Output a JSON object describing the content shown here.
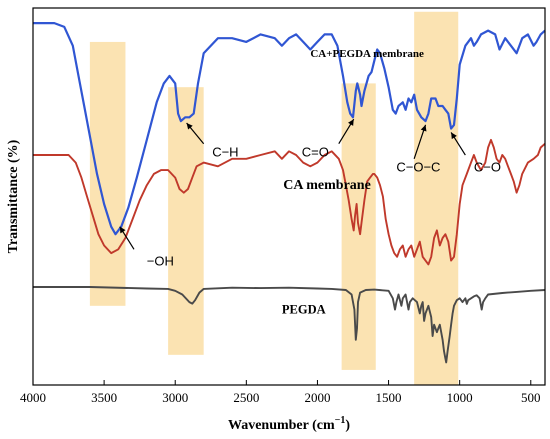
{
  "chart_data": {
    "type": "line",
    "xlabel": "Wavenumber (cm",
    "xlabel_sup": "−1",
    "xlabel_close": ")",
    "ylabel": "Transmittance (%)",
    "xlim": [
      4000,
      400
    ],
    "x_reversed": true,
    "y_ticks_shown": false,
    "grid": false,
    "legend": "none",
    "x_ticks": [
      4000,
      3500,
      3000,
      2500,
      2000,
      1500,
      1000,
      500
    ],
    "highlight_color": "#fbe3b2",
    "highlight_bands": [
      [
        3600,
        3350
      ],
      [
        3050,
        2800
      ],
      [
        1830,
        1590
      ],
      [
        1320,
        1010
      ]
    ],
    "series": [
      {
        "name": "CA+PEGDA membrane",
        "color": "#3056d3",
        "points": [
          [
            4000,
            96
          ],
          [
            3850,
            96
          ],
          [
            3780,
            95
          ],
          [
            3720,
            90
          ],
          [
            3680,
            82
          ],
          [
            3640,
            74
          ],
          [
            3600,
            66
          ],
          [
            3550,
            56
          ],
          [
            3500,
            48
          ],
          [
            3450,
            42
          ],
          [
            3420,
            40
          ],
          [
            3380,
            42
          ],
          [
            3330,
            47
          ],
          [
            3270,
            55
          ],
          [
            3200,
            65
          ],
          [
            3130,
            75
          ],
          [
            3080,
            80
          ],
          [
            3040,
            82
          ],
          [
            3000,
            80
          ],
          [
            2980,
            72
          ],
          [
            2960,
            70
          ],
          [
            2930,
            71
          ],
          [
            2900,
            71
          ],
          [
            2870,
            72
          ],
          [
            2840,
            80
          ],
          [
            2800,
            88
          ],
          [
            2700,
            92
          ],
          [
            2600,
            92
          ],
          [
            2500,
            91
          ],
          [
            2400,
            93
          ],
          [
            2300,
            92
          ],
          [
            2250,
            90
          ],
          [
            2200,
            92
          ],
          [
            2150,
            93
          ],
          [
            2100,
            91
          ],
          [
            2050,
            89
          ],
          [
            2000,
            91
          ],
          [
            1950,
            93
          ],
          [
            1900,
            93
          ],
          [
            1860,
            90
          ],
          [
            1820,
            82
          ],
          [
            1790,
            75
          ],
          [
            1770,
            72
          ],
          [
            1750,
            71
          ],
          [
            1730,
            78
          ],
          [
            1720,
            80
          ],
          [
            1700,
            77
          ],
          [
            1690,
            74
          ],
          [
            1670,
            78
          ],
          [
            1640,
            82
          ],
          [
            1620,
            83
          ],
          [
            1600,
            86
          ],
          [
            1580,
            89
          ],
          [
            1560,
            88
          ],
          [
            1530,
            84
          ],
          [
            1500,
            79
          ],
          [
            1470,
            73
          ],
          [
            1450,
            72
          ],
          [
            1430,
            74
          ],
          [
            1400,
            75
          ],
          [
            1380,
            73
          ],
          [
            1360,
            76
          ],
          [
            1340,
            75
          ],
          [
            1320,
            77
          ],
          [
            1300,
            73
          ],
          [
            1270,
            71
          ],
          [
            1240,
            70
          ],
          [
            1220,
            72
          ],
          [
            1200,
            76
          ],
          [
            1170,
            76
          ],
          [
            1150,
            74
          ],
          [
            1120,
            74
          ],
          [
            1100,
            73
          ],
          [
            1080,
            72
          ],
          [
            1060,
            68
          ],
          [
            1040,
            69
          ],
          [
            1020,
            76
          ],
          [
            1000,
            85
          ],
          [
            960,
            90
          ],
          [
            920,
            92
          ],
          [
            900,
            90
          ],
          [
            880,
            91
          ],
          [
            850,
            93
          ],
          [
            800,
            94
          ],
          [
            750,
            93
          ],
          [
            720,
            89
          ],
          [
            680,
            92
          ],
          [
            640,
            90
          ],
          [
            600,
            88
          ],
          [
            560,
            92
          ],
          [
            520,
            93
          ],
          [
            480,
            90
          ],
          [
            460,
            91
          ],
          [
            430,
            93
          ],
          [
            400,
            94
          ]
        ]
      },
      {
        "name": "CA membrane",
        "color": "#c0392b",
        "points": [
          [
            4000,
            61
          ],
          [
            3850,
            61
          ],
          [
            3750,
            61
          ],
          [
            3700,
            59
          ],
          [
            3660,
            55
          ],
          [
            3620,
            50
          ],
          [
            3580,
            45
          ],
          [
            3540,
            40
          ],
          [
            3500,
            37
          ],
          [
            3450,
            35
          ],
          [
            3400,
            36
          ],
          [
            3350,
            39
          ],
          [
            3300,
            44
          ],
          [
            3250,
            49
          ],
          [
            3200,
            53
          ],
          [
            3150,
            56
          ],
          [
            3100,
            57
          ],
          [
            3050,
            57
          ],
          [
            3000,
            55
          ],
          [
            2970,
            52
          ],
          [
            2940,
            51
          ],
          [
            2910,
            52
          ],
          [
            2880,
            55
          ],
          [
            2850,
            58
          ],
          [
            2800,
            59
          ],
          [
            2700,
            58
          ],
          [
            2600,
            60
          ],
          [
            2500,
            60
          ],
          [
            2400,
            61
          ],
          [
            2300,
            62
          ],
          [
            2250,
            60
          ],
          [
            2200,
            62
          ],
          [
            2150,
            61
          ],
          [
            2100,
            59
          ],
          [
            2050,
            58
          ],
          [
            2000,
            59
          ],
          [
            1950,
            61
          ],
          [
            1900,
            62
          ],
          [
            1850,
            60
          ],
          [
            1820,
            57
          ],
          [
            1800,
            53
          ],
          [
            1780,
            49
          ],
          [
            1760,
            44
          ],
          [
            1745,
            41
          ],
          [
            1735,
            45
          ],
          [
            1725,
            48
          ],
          [
            1715,
            43
          ],
          [
            1700,
            40
          ],
          [
            1690,
            43
          ],
          [
            1670,
            49
          ],
          [
            1650,
            54
          ],
          [
            1630,
            55
          ],
          [
            1610,
            56
          ],
          [
            1600,
            56
          ],
          [
            1580,
            55
          ],
          [
            1560,
            53
          ],
          [
            1540,
            50
          ],
          [
            1520,
            44
          ],
          [
            1500,
            40
          ],
          [
            1480,
            37
          ],
          [
            1460,
            35
          ],
          [
            1440,
            34
          ],
          [
            1420,
            36
          ],
          [
            1400,
            37
          ],
          [
            1380,
            34
          ],
          [
            1360,
            36
          ],
          [
            1340,
            37
          ],
          [
            1320,
            34
          ],
          [
            1300,
            36
          ],
          [
            1280,
            38
          ],
          [
            1260,
            34
          ],
          [
            1240,
            33
          ],
          [
            1220,
            32
          ],
          [
            1200,
            34
          ],
          [
            1180,
            39
          ],
          [
            1160,
            41
          ],
          [
            1140,
            37
          ],
          [
            1120,
            39
          ],
          [
            1100,
            40
          ],
          [
            1080,
            38
          ],
          [
            1060,
            33
          ],
          [
            1040,
            34
          ],
          [
            1020,
            40
          ],
          [
            1000,
            48
          ],
          [
            980,
            53
          ],
          [
            950,
            56
          ],
          [
            920,
            59
          ],
          [
            900,
            61
          ],
          [
            880,
            59
          ],
          [
            850,
            57
          ],
          [
            820,
            59
          ],
          [
            800,
            63
          ],
          [
            780,
            65
          ],
          [
            760,
            63
          ],
          [
            740,
            60
          ],
          [
            720,
            59
          ],
          [
            700,
            61
          ],
          [
            680,
            60
          ],
          [
            660,
            58
          ],
          [
            640,
            56
          ],
          [
            620,
            54
          ],
          [
            600,
            51
          ],
          [
            580,
            53
          ],
          [
            560,
            56
          ],
          [
            520,
            59
          ],
          [
            480,
            60
          ],
          [
            450,
            61
          ],
          [
            430,
            63
          ],
          [
            400,
            64
          ]
        ]
      },
      {
        "name": "PEGDA",
        "color": "#4a4a4a",
        "points": [
          [
            4000,
            26
          ],
          [
            3600,
            26
          ],
          [
            3200,
            25.6
          ],
          [
            3050,
            25.5
          ],
          [
            3000,
            25
          ],
          [
            2950,
            24
          ],
          [
            2900,
            22
          ],
          [
            2880,
            21.6
          ],
          [
            2860,
            22.5
          ],
          [
            2830,
            24.5
          ],
          [
            2800,
            25.5
          ],
          [
            2600,
            25.8
          ],
          [
            2400,
            25.7
          ],
          [
            2200,
            25.8
          ],
          [
            2000,
            25.6
          ],
          [
            1900,
            25.5
          ],
          [
            1800,
            25.2
          ],
          [
            1760,
            24
          ],
          [
            1740,
            20
          ],
          [
            1730,
            12
          ],
          [
            1722,
            15
          ],
          [
            1715,
            22
          ],
          [
            1700,
            24.5
          ],
          [
            1660,
            25.2
          ],
          [
            1600,
            25.3
          ],
          [
            1500,
            25
          ],
          [
            1470,
            23
          ],
          [
            1455,
            20
          ],
          [
            1445,
            22
          ],
          [
            1430,
            24
          ],
          [
            1410,
            21
          ],
          [
            1400,
            23
          ],
          [
            1380,
            24
          ],
          [
            1360,
            20
          ],
          [
            1350,
            22
          ],
          [
            1330,
            23
          ],
          [
            1300,
            22
          ],
          [
            1280,
            19
          ],
          [
            1270,
            21
          ],
          [
            1260,
            22
          ],
          [
            1250,
            17
          ],
          [
            1240,
            19
          ],
          [
            1220,
            21
          ],
          [
            1200,
            18
          ],
          [
            1190,
            13
          ],
          [
            1180,
            16
          ],
          [
            1170,
            15
          ],
          [
            1160,
            14
          ],
          [
            1150,
            15
          ],
          [
            1140,
            16
          ],
          [
            1130,
            14
          ],
          [
            1120,
            12
          ],
          [
            1110,
            9
          ],
          [
            1100,
            7
          ],
          [
            1095,
            6
          ],
          [
            1085,
            9
          ],
          [
            1070,
            13
          ],
          [
            1060,
            16
          ],
          [
            1050,
            19
          ],
          [
            1040,
            21
          ],
          [
            1020,
            22.5
          ],
          [
            1000,
            23
          ],
          [
            980,
            22
          ],
          [
            960,
            23
          ],
          [
            950,
            21.5
          ],
          [
            940,
            22.5
          ],
          [
            900,
            23.5
          ],
          [
            880,
            23.8
          ],
          [
            860,
            23
          ],
          [
            845,
            20
          ],
          [
            835,
            22
          ],
          [
            820,
            23
          ],
          [
            800,
            24
          ],
          [
            700,
            24.4
          ],
          [
            600,
            24.7
          ],
          [
            500,
            25
          ],
          [
            400,
            25.2
          ]
        ]
      }
    ],
    "series_labels": [
      {
        "text": "CA+PEGDA membrane",
        "x": 2050,
        "y": 87
      },
      {
        "text": "CA membrane",
        "x": 2240,
        "y": 52
      },
      {
        "text": "PEGDA",
        "x": 2250,
        "y": 19
      }
    ],
    "annotations": [
      {
        "text": "−OH",
        "tip": [
          3390,
          42
        ],
        "tail": [
          3290,
          36
        ],
        "text_at": [
          3200,
          33
        ]
      },
      {
        "text": "C−H",
        "tip": [
          2920,
          69.5
        ],
        "tail": [
          2800,
          64
        ],
        "text_at": [
          2740,
          62
        ]
      },
      {
        "text": "C=O",
        "tip": [
          1745,
          70.5
        ],
        "tail": [
          1850,
          64
        ],
        "text_at": [
          1920,
          62
        ]
      },
      {
        "text": "C−O−C",
        "tip": [
          1240,
          69
        ],
        "tail": [
          1320,
          60
        ],
        "text_at": [
          1290,
          58
        ]
      },
      {
        "text": "C−O",
        "tip": [
          1060,
          67
        ],
        "tail": [
          960,
          61
        ],
        "text_at": [
          900,
          58
        ]
      }
    ]
  }
}
